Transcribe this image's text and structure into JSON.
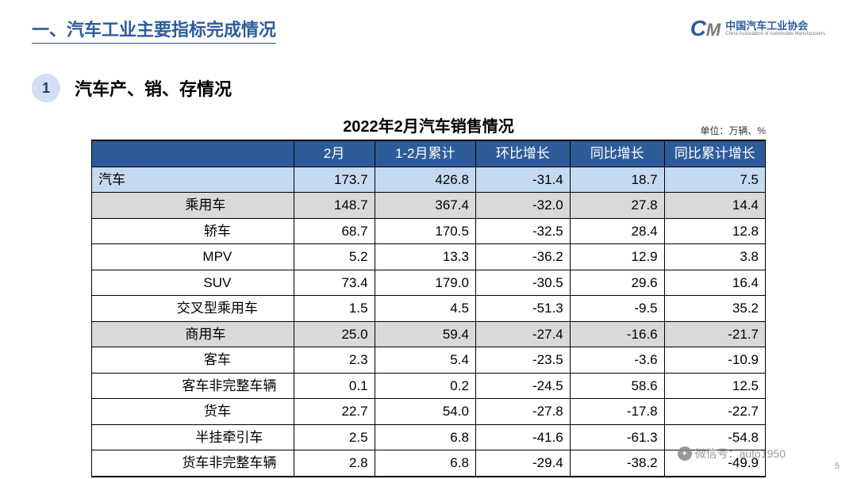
{
  "main_title": "一、汽车工业主要指标完成情况",
  "logo": {
    "cn": "中国汽车工业协会",
    "en": "China Association of Automobile Manufacturers"
  },
  "section": {
    "num": "1",
    "title": "汽车产、销、存情况"
  },
  "table": {
    "title": "2022年2月汽车销售情况",
    "unit": "单位：万辆、%",
    "columns": [
      "",
      "2月",
      "1-2月累计",
      "环比增长",
      "同比增长",
      "同比累计增长"
    ],
    "col_widths": [
      "30%",
      "12%",
      "15%",
      "14%",
      "14%",
      "15%"
    ],
    "header_bg": "#2e5c9a",
    "header_color": "#ffffff",
    "highlight_bg": "#c5daf1",
    "subhead_bg": "#d9d9d9",
    "rows": [
      {
        "label": "汽车",
        "indent": 0,
        "style": "highlight",
        "values": [
          "173.7",
          "426.8",
          "-31.4",
          "18.7",
          "7.5"
        ]
      },
      {
        "label": "乘用车",
        "indent": 1,
        "center": true,
        "style": "subhead",
        "values": [
          "148.7",
          "367.4",
          "-32.0",
          "27.8",
          "14.4"
        ]
      },
      {
        "label": "轿车",
        "indent": 2,
        "center": true,
        "style": "",
        "values": [
          "68.7",
          "170.5",
          "-32.5",
          "28.4",
          "12.8"
        ]
      },
      {
        "label": "MPV",
        "indent": 2,
        "center": true,
        "style": "",
        "values": [
          "5.2",
          "13.3",
          "-36.2",
          "12.9",
          "3.8"
        ]
      },
      {
        "label": "SUV",
        "indent": 2,
        "center": true,
        "style": "",
        "values": [
          "73.4",
          "179.0",
          "-30.5",
          "29.6",
          "16.4"
        ]
      },
      {
        "label": "交叉型乘用车",
        "indent": 2,
        "center": true,
        "style": "",
        "values": [
          "1.5",
          "4.5",
          "-51.3",
          "-9.5",
          "35.2"
        ]
      },
      {
        "label": "商用车",
        "indent": 1,
        "center": true,
        "style": "subhead",
        "values": [
          "25.0",
          "59.4",
          "-27.4",
          "-16.6",
          "-21.7"
        ]
      },
      {
        "label": "客车",
        "indent": 2,
        "center": true,
        "style": "",
        "values": [
          "2.3",
          "5.4",
          "-23.5",
          "-3.6",
          "-10.9"
        ]
      },
      {
        "label": "客车非完整车辆",
        "indent": 3,
        "center": true,
        "style": "",
        "values": [
          "0.1",
          "0.2",
          "-24.5",
          "58.6",
          "12.5"
        ]
      },
      {
        "label": "货车",
        "indent": 2,
        "center": true,
        "style": "",
        "values": [
          "22.7",
          "54.0",
          "-27.8",
          "-17.8",
          "-22.7"
        ]
      },
      {
        "label": "半挂牵引车",
        "indent": 3,
        "center": true,
        "style": "",
        "values": [
          "2.5",
          "6.8",
          "-41.6",
          "-61.3",
          "-54.8"
        ]
      },
      {
        "label": "货车非完整车辆",
        "indent": 3,
        "center": true,
        "style": "",
        "values": [
          "2.8",
          "6.8",
          "-29.4",
          "-38.2",
          "-49.9"
        ]
      }
    ]
  },
  "wechat": "微信号：auto1950",
  "page_number": "5"
}
